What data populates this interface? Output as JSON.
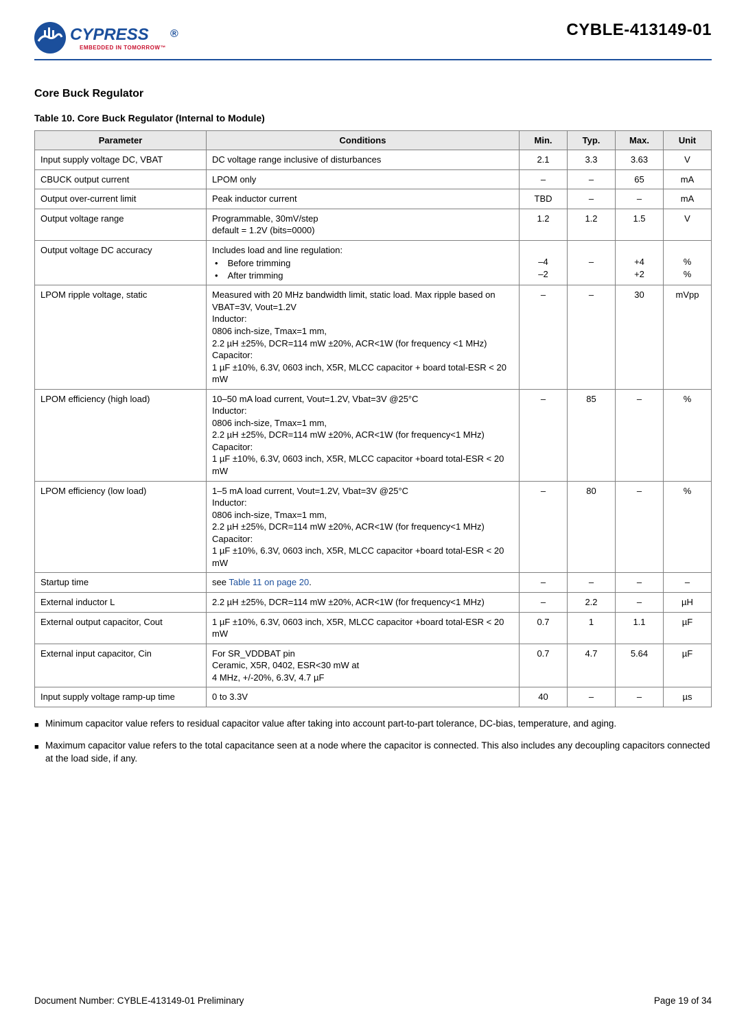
{
  "header": {
    "logo": {
      "brand_main": "CYPRESS",
      "brand_tag": "EMBEDDED IN TOMORROW",
      "brand_fill": "#1b4f9c",
      "tag_fill": "#c8102e"
    },
    "doc_code": "CYBLE-413149-01",
    "rule_color": "#1b4f9c"
  },
  "section_title": "Core Buck Regulator",
  "table_title": "Table 10.  Core Buck Regulator (Internal to Module)",
  "table": {
    "columns": [
      "Parameter",
      "Conditions",
      "Min.",
      "Typ.",
      "Max.",
      "Unit"
    ],
    "rows": [
      {
        "param": "Input supply voltage DC, VBAT",
        "cond": "DC voltage range inclusive of disturbances",
        "min": "2.1",
        "typ": "3.3",
        "max": "3.63",
        "unit": "V"
      },
      {
        "param": "CBUCK output current",
        "cond": "LPOM only",
        "min": "–",
        "typ": "–",
        "max": "65",
        "unit": "mA"
      },
      {
        "param": "Output over-current limit",
        "cond": "Peak inductor current",
        "min": "TBD",
        "typ": "–",
        "max": "–",
        "unit": "mA"
      },
      {
        "param": "Output voltage range",
        "cond_lines": [
          "Programmable, 30mV/step",
          "default = 1.2V (bits=0000)"
        ],
        "min": "1.2",
        "typ": "1.2",
        "max": "1.5",
        "unit": "V"
      },
      {
        "param": "Output voltage DC accuracy",
        "cond_intro": "Includes load and line regulation:",
        "cond_bullets": [
          "Before trimming",
          "After trimming"
        ],
        "min_lines": [
          "",
          "–4",
          "–2"
        ],
        "typ_lines": [
          "",
          "–",
          ""
        ],
        "max_lines": [
          "",
          "+4",
          "+2"
        ],
        "unit_lines": [
          "",
          "%",
          "%"
        ]
      },
      {
        "param": "LPOM ripple voltage, static",
        "cond_lines": [
          "Measured with 20 MHz bandwidth limit, static load. Max ripple based on VBAT=3V, Vout=1.2V",
          "Inductor:",
          "0806 inch-size, Tmax=1 mm,",
          "2.2 µH ±25%, DCR=114 mW ±20%, ACR<1W (for frequency <1 MHz)",
          "Capacitor:",
          "1 µF ±10%, 6.3V, 0603 inch, X5R, MLCC capacitor + board total-ESR < 20 mW"
        ],
        "min": "–",
        "typ": "–",
        "max": "30",
        "unit": "mVpp"
      },
      {
        "param": "LPOM efficiency (high load)",
        "cond_lines": [
          "10–50 mA load current, Vout=1.2V, Vbat=3V @25°C",
          "Inductor:",
          "0806 inch-size, Tmax=1 mm,",
          "2.2 µH ±25%, DCR=114 mW ±20%, ACR<1W (for frequency<1 MHz)",
          "Capacitor:",
          "1 µF ±10%, 6.3V, 0603 inch, X5R, MLCC capacitor +board total-ESR < 20 mW"
        ],
        "min": "–",
        "typ": "85",
        "max": "–",
        "unit": "%"
      },
      {
        "param": "LPOM efficiency (low load)",
        "cond_lines": [
          "1–5 mA load current, Vout=1.2V, Vbat=3V @25°C",
          "Inductor:",
          "0806 inch-size, Tmax=1 mm,",
          "2.2 µH ±25%, DCR=114 mW ±20%, ACR<1W (for frequency<1 MHz)",
          "Capacitor:",
          "1 µF ±10%, 6.3V, 0603 inch, X5R, MLCC capacitor +board total-ESR < 20 mW"
        ],
        "min": "–",
        "typ": "80",
        "max": "–",
        "unit": "%"
      },
      {
        "param": "Startup time",
        "cond_link": {
          "prefix": "see ",
          "text": "Table 11 on page 20",
          "suffix": "."
        },
        "min": "–",
        "typ": "–",
        "max": "–",
        "unit": "–"
      },
      {
        "param": "External inductor L",
        "cond": "2.2 µH ±25%, DCR=114 mW ±20%, ACR<1W (for frequency<1 MHz)",
        "min": "–",
        "typ": "2.2",
        "max": "–",
        "unit": "µH"
      },
      {
        "param": "External output capacitor, Cout",
        "cond": "1 µF ±10%, 6.3V, 0603 inch, X5R, MLCC capacitor +board total-ESR < 20 mW",
        "min": "0.7",
        "typ": "1",
        "max": "1.1",
        "unit": "µF"
      },
      {
        "param": "External input capacitor, Cin",
        "cond_lines": [
          "For SR_VDDBAT pin",
          "Ceramic, X5R, 0402, ESR<30 mW at",
          "4 MHz, +/-20%, 6.3V, 4.7 µF"
        ],
        "min": "0.7",
        "typ": "4.7",
        "max": "5.64",
        "unit": "µF"
      },
      {
        "param": "Input supply voltage ramp-up time",
        "cond": "0 to 3.3V",
        "min": "40",
        "typ": "–",
        "max": "–",
        "unit": "µs"
      }
    ]
  },
  "notes": [
    "Minimum capacitor value refers to residual capacitor value after taking into account part-to-part tolerance, DC-bias, temperature, and aging.",
    "Maximum capacitor value refers to the total capacitance seen at a node where the capacitor is connected. This also includes any decoupling capacitors connected at the load side, if any."
  ],
  "footer": {
    "left": "Document Number:  CYBLE-413149-01 Preliminary",
    "right": "Page 19 of 34"
  },
  "colors": {
    "header_bg": "#e8e8e8",
    "border": "#808080",
    "link": "#1b4f9c",
    "text": "#000000",
    "background": "#ffffff"
  }
}
